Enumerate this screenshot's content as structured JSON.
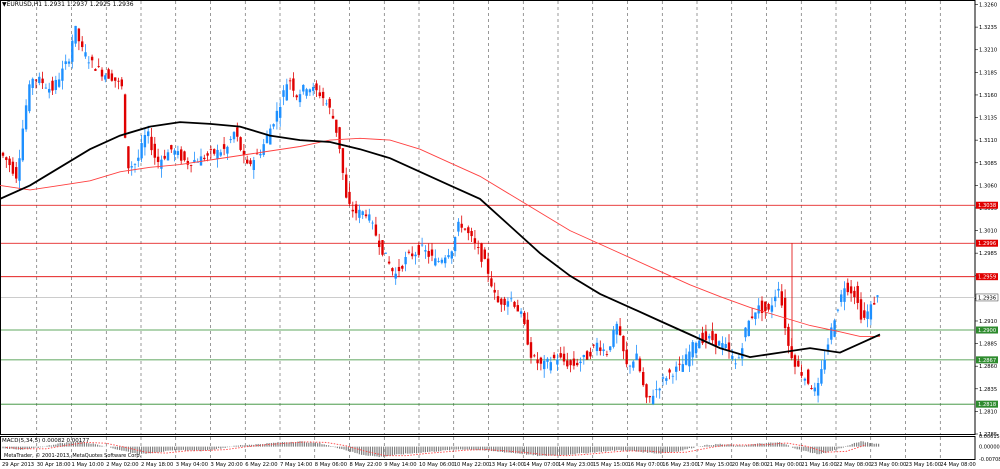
{
  "symbol_header": "▼EURUSD,H1  1.2931 1.2937 1.2925 1.2936",
  "indicator_header": "MACD(5,34,5) 0.00082 0.00177",
  "copyright": "MetaTrader, © 2001-2013, MetaQuotes Software Corp.",
  "colors": {
    "bull": "#1e90ff",
    "bear": "#e00000",
    "ma_slow": "#000000",
    "ma_fast": "#ff4040",
    "resistance": "#e00000",
    "support": "#2e8b2e",
    "current_price": "#000000"
  },
  "chart_data": {
    "type": "candlestick",
    "title": "EURUSD,H1",
    "price_axis": {
      "range": [
        1.2785,
        1.3265
      ],
      "ticks": [
        "1.3260",
        "1.3235",
        "1.3210",
        "1.3185",
        "1.3160",
        "1.3135",
        "1.3110",
        "1.3085",
        "1.3060",
        "1.3035",
        "1.3010",
        "1.2985",
        "1.2960",
        "1.2935",
        "1.2910",
        "1.2885",
        "1.2860",
        "1.2835",
        "1.2810",
        "1.2785"
      ]
    },
    "time_axis": {
      "labels": [
        "29 Apr 2013",
        "30 Apr 18:00",
        "1 May 10:00",
        "2 May 02:00",
        "2 May 18:00",
        "3 May 04:00",
        "3 May 20:00",
        "6 May 22:00",
        "7 May 14:00",
        "8 May 06:00",
        "8 May 22:00",
        "9 May 14:00",
        "10 May 06:00",
        "10 May 22:00",
        "13 May 14:00",
        "14 May 07:00",
        "14 May 23:00",
        "15 May 15:00",
        "16 May 07:00",
        "16 May 23:00",
        "17 May 15:00",
        "20 May 08:00",
        "21 May 00:00",
        "21 May 16:00",
        "22 May 08:00",
        "23 May 00:00",
        "23 May 16:00",
        "24 May 08:00"
      ]
    },
    "horizontal_levels": [
      {
        "price": "1.3038",
        "kind": "resistance"
      },
      {
        "price": "1.2996",
        "kind": "resistance"
      },
      {
        "price": "1.2959",
        "kind": "resistance"
      },
      {
        "price": "1.2936",
        "kind": "current"
      },
      {
        "price": "1.2900",
        "kind": "support"
      },
      {
        "price": "1.2867",
        "kind": "support"
      },
      {
        "price": "1.2818",
        "kind": "support"
      }
    ],
    "price_path": [
      [
        0,
        1.31
      ],
      [
        12,
        1.3085
      ],
      [
        20,
        1.307
      ],
      [
        28,
        1.314
      ],
      [
        35,
        1.318
      ],
      [
        45,
        1.3175
      ],
      [
        55,
        1.3165
      ],
      [
        65,
        1.3185
      ],
      [
        72,
        1.32
      ],
      [
        78,
        1.3235
      ],
      [
        85,
        1.321
      ],
      [
        95,
        1.3195
      ],
      [
        105,
        1.3185
      ],
      [
        115,
        1.318
      ],
      [
        125,
        1.317
      ],
      [
        130,
        1.308
      ],
      [
        140,
        1.3085
      ],
      [
        150,
        1.312
      ],
      [
        160,
        1.3085
      ],
      [
        175,
        1.31
      ],
      [
        190,
        1.3085
      ],
      [
        205,
        1.309
      ],
      [
        215,
        1.3095
      ],
      [
        230,
        1.31
      ],
      [
        238,
        1.312
      ],
      [
        250,
        1.308
      ],
      [
        265,
        1.31
      ],
      [
        280,
        1.314
      ],
      [
        292,
        1.318
      ],
      [
        300,
        1.316
      ],
      [
        310,
        1.317
      ],
      [
        325,
        1.316
      ],
      [
        335,
        1.314
      ],
      [
        342,
        1.311
      ],
      [
        350,
        1.304
      ],
      [
        358,
        1.303
      ],
      [
        370,
        1.303
      ],
      [
        385,
        1.299
      ],
      [
        398,
        1.296
      ],
      [
        410,
        1.298
      ],
      [
        425,
        1.299
      ],
      [
        440,
        1.2975
      ],
      [
        455,
        1.299
      ],
      [
        463,
        1.302
      ],
      [
        475,
        1.3
      ],
      [
        490,
        1.297
      ],
      [
        500,
        1.293
      ],
      [
        515,
        1.2935
      ],
      [
        525,
        1.2915
      ],
      [
        535,
        1.287
      ],
      [
        545,
        1.286
      ],
      [
        560,
        1.287
      ],
      [
        575,
        1.286
      ],
      [
        590,
        1.287
      ],
      [
        600,
        1.2885
      ],
      [
        610,
        1.2875
      ],
      [
        620,
        1.2905
      ],
      [
        630,
        1.286
      ],
      [
        640,
        1.287
      ],
      [
        650,
        1.282
      ],
      [
        660,
        1.2835
      ],
      [
        670,
        1.285
      ],
      [
        685,
        1.286
      ],
      [
        700,
        1.289
      ],
      [
        715,
        1.289
      ],
      [
        730,
        1.288
      ],
      [
        740,
        1.286
      ],
      [
        750,
        1.2905
      ],
      [
        760,
        1.2925
      ],
      [
        772,
        1.292
      ],
      [
        782,
        1.295
      ],
      [
        792,
        1.288
      ],
      [
        800,
        1.286
      ],
      [
        810,
        1.2845
      ],
      [
        820,
        1.283
      ],
      [
        830,
        1.288
      ],
      [
        838,
        1.2915
      ],
      [
        848,
        1.295
      ],
      [
        858,
        1.294
      ],
      [
        866,
        1.291
      ],
      [
        874,
        1.2925
      ],
      [
        880,
        1.2936
      ]
    ],
    "ma_slow_path": [
      [
        0,
        1.3045
      ],
      [
        30,
        1.306
      ],
      [
        60,
        1.308
      ],
      [
        90,
        1.31
      ],
      [
        120,
        1.3115
      ],
      [
        150,
        1.3125
      ],
      [
        180,
        1.313
      ],
      [
        210,
        1.3128
      ],
      [
        240,
        1.3125
      ],
      [
        270,
        1.3115
      ],
      [
        300,
        1.311
      ],
      [
        330,
        1.3108
      ],
      [
        360,
        1.31
      ],
      [
        390,
        1.309
      ],
      [
        420,
        1.3075
      ],
      [
        450,
        1.306
      ],
      [
        480,
        1.3045
      ],
      [
        510,
        1.3015
      ],
      [
        540,
        1.2985
      ],
      [
        570,
        1.296
      ],
      [
        600,
        1.294
      ],
      [
        630,
        1.2925
      ],
      [
        660,
        1.291
      ],
      [
        690,
        1.2895
      ],
      [
        720,
        1.288
      ],
      [
        750,
        1.287
      ],
      [
        780,
        1.2875
      ],
      [
        810,
        1.288
      ],
      [
        840,
        1.2875
      ],
      [
        860,
        1.2885
      ],
      [
        880,
        1.2895
      ]
    ],
    "ma_fast_path": [
      [
        0,
        1.306
      ],
      [
        30,
        1.3055
      ],
      [
        60,
        1.306
      ],
      [
        90,
        1.3065
      ],
      [
        120,
        1.3075
      ],
      [
        150,
        1.308
      ],
      [
        180,
        1.3083
      ],
      [
        210,
        1.3088
      ],
      [
        240,
        1.3093
      ],
      [
        270,
        1.3098
      ],
      [
        300,
        1.3103
      ],
      [
        330,
        1.311
      ],
      [
        360,
        1.3112
      ],
      [
        390,
        1.311
      ],
      [
        420,
        1.31
      ],
      [
        450,
        1.3085
      ],
      [
        480,
        1.307
      ],
      [
        510,
        1.305
      ],
      [
        540,
        1.303
      ],
      [
        570,
        1.301
      ],
      [
        600,
        1.2995
      ],
      [
        630,
        1.298
      ],
      [
        660,
        1.2965
      ],
      [
        690,
        1.295
      ],
      [
        720,
        1.2937
      ],
      [
        750,
        1.2925
      ],
      [
        780,
        1.2915
      ],
      [
        810,
        1.2905
      ],
      [
        840,
        1.2898
      ],
      [
        860,
        1.2893
      ],
      [
        880,
        1.2893
      ]
    ],
    "macd": {
      "ticks": [
        "0.00615",
        "0.00000",
        "-0.00708"
      ],
      "range": [
        -0.0072,
        0.0062
      ],
      "path": [
        [
          0,
          -0.0005
        ],
        [
          20,
          -0.002
        ],
        [
          40,
          -0.0005
        ],
        [
          60,
          0.002
        ],
        [
          80,
          0.003
        ],
        [
          100,
          0.001
        ],
        [
          120,
          -0.002
        ],
        [
          140,
          -0.0045
        ],
        [
          160,
          -0.003
        ],
        [
          180,
          -0.002
        ],
        [
          200,
          -0.0025
        ],
        [
          220,
          -0.001
        ],
        [
          240,
          0.0008
        ],
        [
          260,
          0.0015
        ],
        [
          280,
          0.0025
        ],
        [
          300,
          0.003
        ],
        [
          320,
          0.002
        ],
        [
          340,
          -0.001
        ],
        [
          360,
          -0.0045
        ],
        [
          380,
          -0.006
        ],
        [
          400,
          -0.0045
        ],
        [
          420,
          -0.0035
        ],
        [
          440,
          -0.0025
        ],
        [
          460,
          -0.0015
        ],
        [
          480,
          -0.002
        ],
        [
          500,
          -0.003
        ],
        [
          520,
          -0.004
        ],
        [
          540,
          -0.0055
        ],
        [
          560,
          -0.005
        ],
        [
          580,
          -0.004
        ],
        [
          600,
          -0.003
        ],
        [
          620,
          -0.002
        ],
        [
          640,
          -0.003
        ],
        [
          660,
          -0.004
        ],
        [
          680,
          -0.0025
        ],
        [
          700,
          0.0005
        ],
        [
          720,
          0.0015
        ],
        [
          740,
          0.0005
        ],
        [
          760,
          0.0018
        ],
        [
          780,
          0.0025
        ],
        [
          800,
          -0.002
        ],
        [
          820,
          -0.0045
        ],
        [
          840,
          -0.001
        ],
        [
          860,
          0.003
        ],
        [
          880,
          0.0015
        ]
      ]
    }
  }
}
